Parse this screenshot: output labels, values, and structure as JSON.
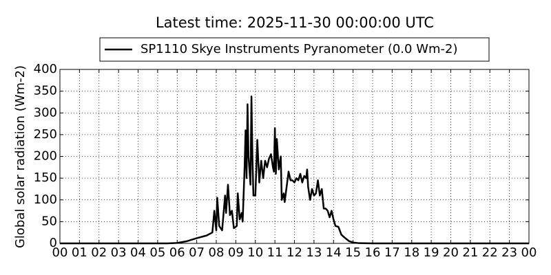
{
  "chart_data": {
    "type": "line",
    "title": "Latest time: 2025-11-30 00:00:00 UTC",
    "y_label": "Global solar radiation (Wm-2)",
    "legend": "upper center",
    "grid": true,
    "series": [
      {
        "name": "SP1110 Skye Instruments Pyranometer (0.0 Wm-2)",
        "color": "#000000",
        "x": [
          0,
          5.5,
          6.0,
          6.5,
          7.0,
          7.5,
          7.8,
          7.9,
          8.0,
          8.05,
          8.15,
          8.3,
          8.45,
          8.5,
          8.6,
          8.7,
          8.8,
          8.9,
          9.05,
          9.1,
          9.2,
          9.3,
          9.35,
          9.45,
          9.5,
          9.55,
          9.6,
          9.65,
          9.75,
          9.8,
          9.85,
          9.9,
          10.0,
          10.1,
          10.2,
          10.3,
          10.4,
          10.5,
          10.6,
          10.7,
          10.8,
          10.9,
          10.95,
          11.0,
          11.05,
          11.1,
          11.2,
          11.3,
          11.35,
          11.45,
          11.5,
          11.6,
          11.7,
          11.8,
          11.9,
          12.0,
          12.1,
          12.2,
          12.3,
          12.4,
          12.5,
          12.6,
          12.65,
          12.7,
          12.8,
          12.9,
          13.0,
          13.1,
          13.2,
          13.3,
          13.4,
          13.5,
          13.6,
          13.7,
          13.8,
          13.9,
          14.0,
          14.1,
          14.25,
          14.4,
          14.6,
          14.8,
          15.0,
          15.3,
          16.0,
          24.0
        ],
        "values": [
          0,
          0,
          1,
          5,
          12,
          18,
          25,
          75,
          30,
          105,
          40,
          30,
          110,
          70,
          135,
          65,
          75,
          35,
          40,
          115,
          55,
          70,
          50,
          175,
          260,
          150,
          320,
          200,
          135,
          338,
          200,
          110,
          110,
          238,
          140,
          190,
          150,
          190,
          175,
          195,
          205,
          175,
          165,
          265,
          160,
          240,
          170,
          200,
          100,
          115,
          95,
          130,
          165,
          145,
          145,
          140,
          150,
          145,
          160,
          140,
          155,
          150,
          170,
          130,
          100,
          125,
          110,
          115,
          145,
          110,
          125,
          80,
          80,
          75,
          60,
          75,
          55,
          40,
          38,
          20,
          12,
          5,
          2,
          0.5,
          0,
          0
        ]
      }
    ],
    "xlim": [
      0,
      24
    ],
    "xticks": [
      {
        "value": 0,
        "label": "00"
      },
      {
        "value": 1,
        "label": "01"
      },
      {
        "value": 2,
        "label": "02"
      },
      {
        "value": 3,
        "label": "03"
      },
      {
        "value": 4,
        "label": "04"
      },
      {
        "value": 5,
        "label": "05"
      },
      {
        "value": 6,
        "label": "06"
      },
      {
        "value": 7,
        "label": "07"
      },
      {
        "value": 8,
        "label": "08"
      },
      {
        "value": 9,
        "label": "09"
      },
      10,
      11,
      12,
      13,
      14,
      15,
      16,
      17,
      18,
      19,
      20,
      21,
      22,
      23,
      {
        "value": 24,
        "label": "00"
      }
    ],
    "ylim": [
      0,
      400
    ],
    "yticks": [
      0,
      50,
      100,
      150,
      200,
      250,
      300,
      350,
      400
    ]
  }
}
